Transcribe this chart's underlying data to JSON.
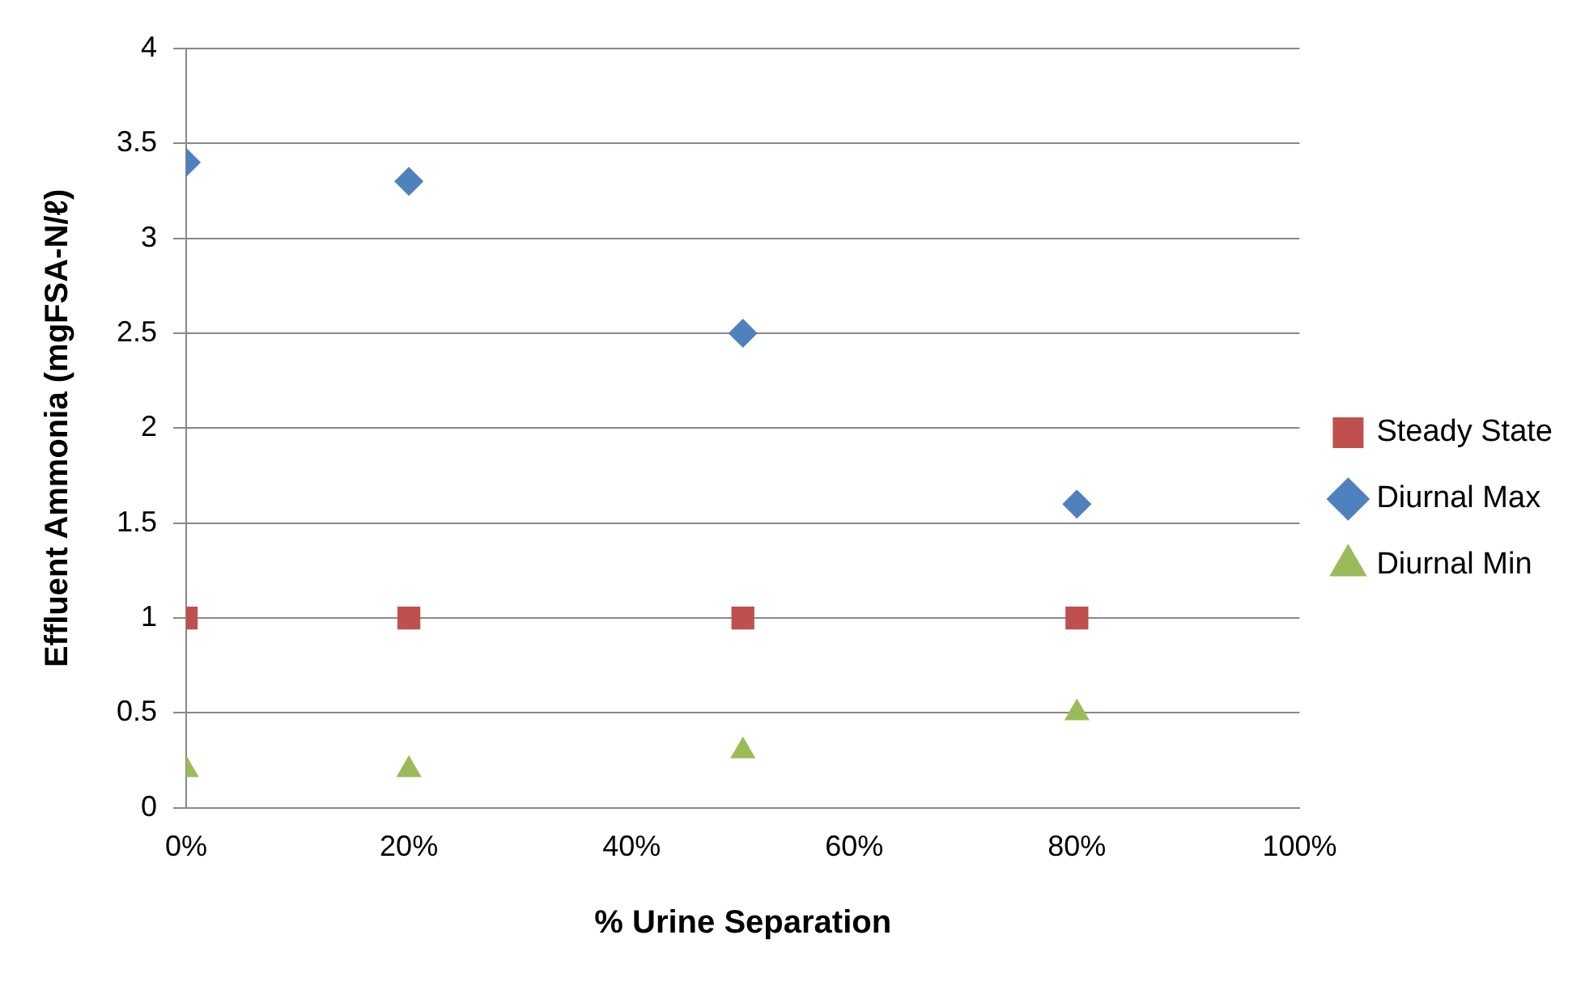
{
  "chart_data": {
    "type": "scatter",
    "xlabel": "% Urine Separation",
    "ylabel": "Effluent Ammonia (mgFSA-N/ℓ)",
    "x": [
      0,
      20,
      50,
      80
    ],
    "series": [
      {
        "name": "Steady State",
        "color": "#c0504d",
        "marker": "square",
        "values": [
          1,
          1,
          1,
          1
        ]
      },
      {
        "name": "Diurnal Max",
        "color": "#4f81bd",
        "marker": "diamond",
        "values": [
          3.4,
          3.3,
          2.5,
          1.6
        ]
      },
      {
        "name": "Diurnal Min",
        "color": "#9bbb59",
        "marker": "triangle",
        "values": [
          0.2,
          0.2,
          0.3,
          0.5
        ]
      }
    ],
    "xlim": [
      0,
      100
    ],
    "xticks": [
      {
        "value": 0,
        "label": "0%"
      },
      {
        "value": 20,
        "label": "20%"
      },
      {
        "value": 40,
        "label": "40%"
      },
      {
        "value": 60,
        "label": "60%"
      },
      {
        "value": 80,
        "label": "80%"
      },
      {
        "value": 100,
        "label": "100%"
      }
    ],
    "ylim": [
      0,
      4
    ],
    "yticks": [
      0,
      0.5,
      1,
      1.5,
      2,
      2.5,
      3,
      3.5,
      4
    ],
    "grid": "y",
    "legend": "right"
  }
}
